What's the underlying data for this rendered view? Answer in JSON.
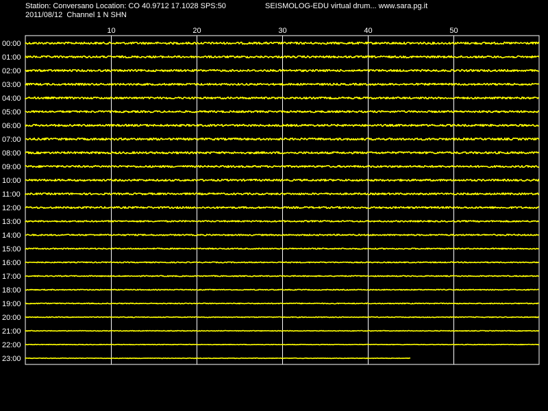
{
  "header": {
    "station_line": "Station: Conversano Location: CO 40.9712 17.1028 SPS:50",
    "date_line": "2011/08/12  Channel 1 N SHN",
    "software_line": "SEISMOLOG-EDU virtual drum... www.sara.pg.it"
  },
  "colors": {
    "background": "#000000",
    "trace": "#ffff00",
    "grid": "#ffffff",
    "text": "#ffffff"
  },
  "chart_data": {
    "type": "line",
    "title": "",
    "xlabel": "",
    "ylabel": "",
    "xlim": [
      0,
      60
    ],
    "x_ticks": [
      10,
      20,
      30,
      40,
      50
    ],
    "x_tick_labels": [
      "10",
      "20",
      "30",
      "40",
      "50"
    ],
    "grid": true,
    "rows": [
      {
        "label": "00:00",
        "end_minute": 60,
        "noise": 0.95
      },
      {
        "label": "01:00",
        "end_minute": 60,
        "noise": 0.9
      },
      {
        "label": "02:00",
        "end_minute": 60,
        "noise": 0.9
      },
      {
        "label": "03:00",
        "end_minute": 60,
        "noise": 0.85
      },
      {
        "label": "04:00",
        "end_minute": 60,
        "noise": 0.85
      },
      {
        "label": "05:00",
        "end_minute": 60,
        "noise": 0.85
      },
      {
        "label": "06:00",
        "end_minute": 60,
        "noise": 0.9
      },
      {
        "label": "07:00",
        "end_minute": 60,
        "noise": 0.95
      },
      {
        "label": "08:00",
        "end_minute": 60,
        "noise": 0.9
      },
      {
        "label": "09:00",
        "end_minute": 60,
        "noise": 0.85
      },
      {
        "label": "10:00",
        "end_minute": 60,
        "noise": 0.85
      },
      {
        "label": "11:00",
        "end_minute": 60,
        "noise": 0.8
      },
      {
        "label": "12:00",
        "end_minute": 60,
        "noise": 0.8
      },
      {
        "label": "13:00",
        "end_minute": 60,
        "noise": 0.65
      },
      {
        "label": "14:00",
        "end_minute": 60,
        "noise": 0.6
      },
      {
        "label": "15:00",
        "end_minute": 60,
        "noise": 0.5
      },
      {
        "label": "16:00",
        "end_minute": 60,
        "noise": 0.45
      },
      {
        "label": "17:00",
        "end_minute": 60,
        "noise": 0.45
      },
      {
        "label": "18:00",
        "end_minute": 60,
        "noise": 0.4
      },
      {
        "label": "19:00",
        "end_minute": 60,
        "noise": 0.4
      },
      {
        "label": "20:00",
        "end_minute": 60,
        "noise": 0.35
      },
      {
        "label": "21:00",
        "end_minute": 60,
        "noise": 0.3
      },
      {
        "label": "22:00",
        "end_minute": 60,
        "noise": 0.25
      },
      {
        "label": "23:00",
        "end_minute": 45,
        "noise": 0.25
      }
    ]
  }
}
